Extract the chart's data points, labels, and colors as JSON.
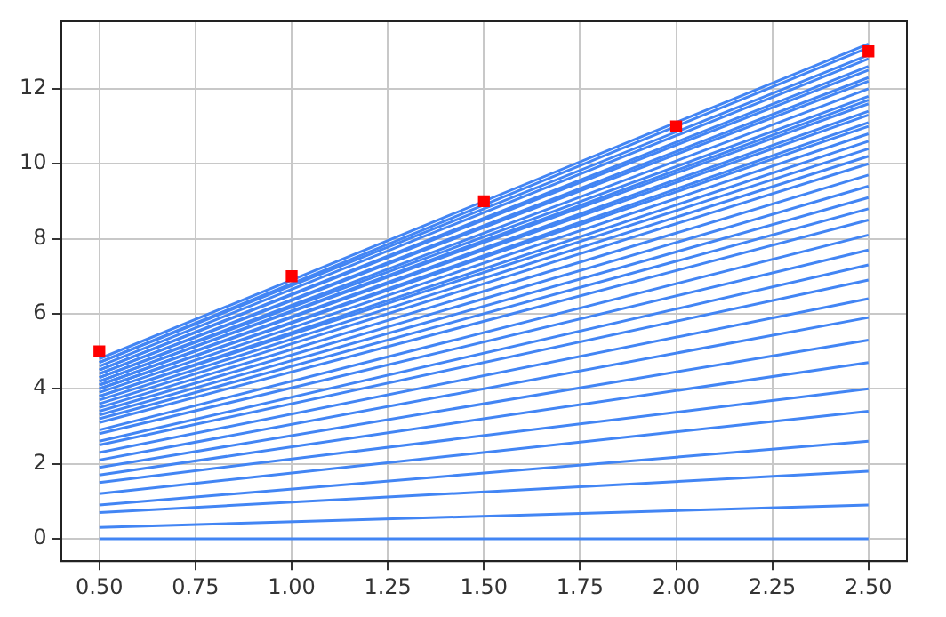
{
  "chart_data": {
    "type": "line",
    "x": [
      0.5,
      2.5
    ],
    "series": [
      {
        "color": "#4285f4",
        "values": [
          0,
          0
        ]
      },
      {
        "color": "#4285f4",
        "values": [
          0.3,
          0.9
        ]
      },
      {
        "color": "#4285f4",
        "values": [
          0.7,
          1.8
        ]
      },
      {
        "color": "#4285f4",
        "values": [
          0.9,
          2.6
        ]
      },
      {
        "color": "#4285f4",
        "values": [
          1.2,
          3.4
        ]
      },
      {
        "color": "#4285f4",
        "values": [
          1.5,
          4.0
        ]
      },
      {
        "color": "#4285f4",
        "values": [
          1.7,
          4.7
        ]
      },
      {
        "color": "#4285f4",
        "values": [
          1.9,
          5.3
        ]
      },
      {
        "color": "#4285f4",
        "values": [
          2.1,
          5.9
        ]
      },
      {
        "color": "#4285f4",
        "values": [
          2.3,
          6.4
        ]
      },
      {
        "color": "#4285f4",
        "values": [
          2.5,
          6.9
        ]
      },
      {
        "color": "#4285f4",
        "values": [
          2.6,
          7.3
        ]
      },
      {
        "color": "#4285f4",
        "values": [
          2.8,
          7.7
        ]
      },
      {
        "color": "#4285f4",
        "values": [
          2.9,
          8.1
        ]
      },
      {
        "color": "#4285f4",
        "values": [
          3.1,
          8.5
        ]
      },
      {
        "color": "#4285f4",
        "values": [
          3.2,
          8.8
        ]
      },
      {
        "color": "#4285f4",
        "values": [
          3.3,
          9.1
        ]
      },
      {
        "color": "#4285f4",
        "values": [
          3.4,
          9.4
        ]
      },
      {
        "color": "#4285f4",
        "values": [
          3.5,
          9.7
        ]
      },
      {
        "color": "#4285f4",
        "values": [
          3.6,
          10.0
        ]
      },
      {
        "color": "#4285f4",
        "values": [
          3.7,
          10.2
        ]
      },
      {
        "color": "#4285f4",
        "values": [
          3.8,
          10.4
        ]
      },
      {
        "color": "#4285f4",
        "values": [
          3.8,
          10.6
        ]
      },
      {
        "color": "#4285f4",
        "values": [
          3.9,
          10.8
        ]
      },
      {
        "color": "#4285f4",
        "values": [
          4.0,
          11.0
        ]
      },
      {
        "color": "#4285f4",
        "values": [
          4.0,
          11.1
        ]
      },
      {
        "color": "#4285f4",
        "values": [
          4.1,
          11.3
        ]
      },
      {
        "color": "#4285f4",
        "values": [
          4.1,
          11.4
        ]
      },
      {
        "color": "#4285f4",
        "values": [
          4.2,
          11.6
        ]
      },
      {
        "color": "#4285f4",
        "values": [
          4.2,
          11.7
        ]
      },
      {
        "color": "#4285f4",
        "values": [
          4.3,
          11.8
        ]
      },
      {
        "color": "#4285f4",
        "values": [
          4.3,
          12.0
        ]
      },
      {
        "color": "#4285f4",
        "values": [
          4.4,
          12.2
        ]
      },
      {
        "color": "#4285f4",
        "values": [
          4.4,
          12.3
        ]
      },
      {
        "color": "#4285f4",
        "values": [
          4.5,
          12.5
        ]
      },
      {
        "color": "#4285f4",
        "values": [
          4.5,
          12.6
        ]
      },
      {
        "color": "#4285f4",
        "values": [
          4.6,
          12.8
        ]
      },
      {
        "color": "#4285f4",
        "values": [
          4.7,
          12.9
        ]
      },
      {
        "color": "#4285f4",
        "values": [
          4.7,
          13.1
        ]
      },
      {
        "color": "#4285f4",
        "values": [
          4.8,
          13.2
        ]
      },
      {
        "type": "scatter",
        "color": "#ff0000",
        "marker": "square",
        "x": [
          0.5,
          1.0,
          1.5,
          2.0,
          2.5
        ],
        "values": [
          5,
          7,
          9,
          11,
          13
        ]
      }
    ],
    "xlim": [
      0.4,
      2.6
    ],
    "ylim": [
      -0.6,
      13.8
    ],
    "xticks": [
      {
        "value": 0.5,
        "label": "0.50"
      },
      {
        "value": 0.75,
        "label": "0.75"
      },
      {
        "value": 1.0,
        "label": "1.00"
      },
      {
        "value": 1.25,
        "label": "1.25"
      },
      {
        "value": 1.5,
        "label": "1.50"
      },
      {
        "value": 1.75,
        "label": "1.75"
      },
      {
        "value": 2.0,
        "label": "2.00"
      },
      {
        "value": 2.25,
        "label": "2.25"
      },
      {
        "value": 2.5,
        "label": "2.50"
      }
    ],
    "yticks": [
      0,
      2,
      4,
      6,
      8,
      10,
      12
    ],
    "grid": true,
    "legend": false
  }
}
